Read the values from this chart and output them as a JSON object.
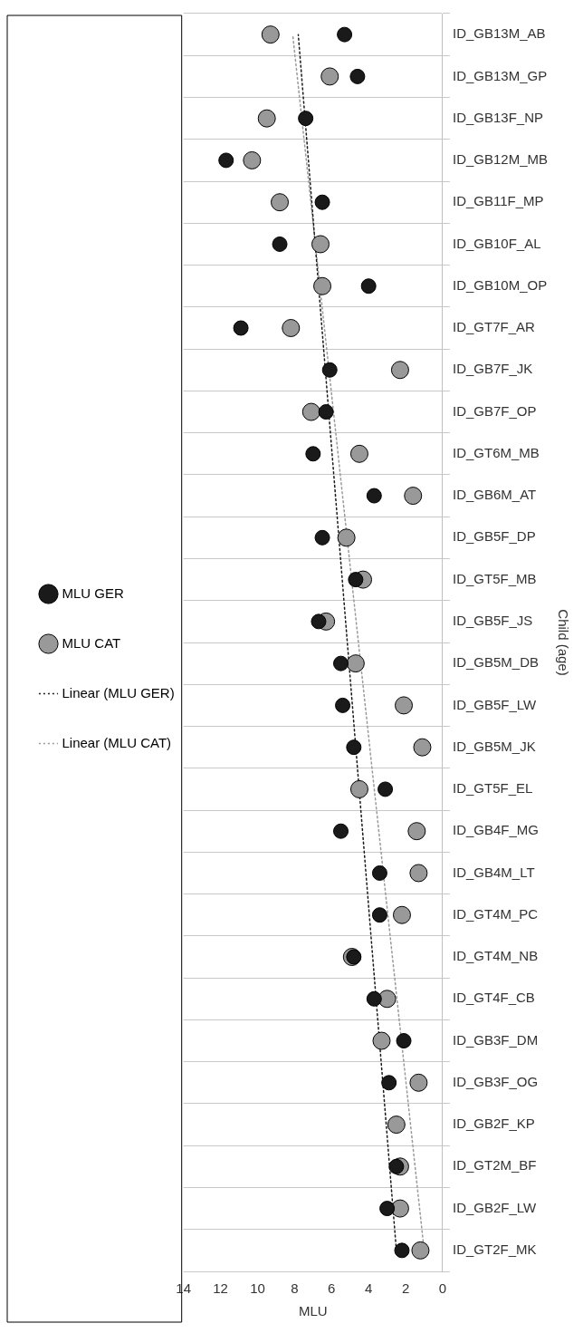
{
  "chart_data": {
    "type": "scatter",
    "orientation": "horizontal",
    "xlabel": "MLU",
    "ylabel": "Child (age)",
    "categories": [
      "ID_GB13M_AB",
      "ID_GB13M_GP",
      "ID_GB13F_NP",
      "ID_GB12M_MB",
      "ID_GB11F_MP",
      "ID_GB10F_AL",
      "ID_GB10M_OP",
      "ID_GT7F_AR",
      "ID_GB7F_JK",
      "ID_GB7F_OP",
      "ID_GT6M_MB",
      "ID_GB6M_AT",
      "ID_GB5F_DP",
      "ID_GT5F_MB",
      "ID_GB5F_JS",
      "ID_GB5M_DB",
      "ID_GB5F_LW",
      "ID_GB5M_JK",
      "ID_GT5F_EL",
      "ID_GB4F_MG",
      "ID_GB4M_LT",
      "ID_GT4M_PC",
      "ID_GT4M_NB",
      "ID_GT4F_CB",
      "ID_GB3F_DM",
      "ID_GB3F_OG",
      "ID_GB2F_KP",
      "ID_GT2M_BF",
      "ID_GB2F_LW",
      "ID_GT2F_MK"
    ],
    "series": [
      {
        "name": "MLU GER",
        "type": "scatter",
        "color": "#1a1a1a",
        "values": [
          5.3,
          4.6,
          7.4,
          11.7,
          6.5,
          8.8,
          4.0,
          10.9,
          6.1,
          6.3,
          7.0,
          3.7,
          6.5,
          4.7,
          6.7,
          5.5,
          5.4,
          4.8,
          3.1,
          5.5,
          3.4,
          3.4,
          4.8,
          3.7,
          2.1,
          2.9,
          null,
          2.5,
          3.0,
          2.2
        ]
      },
      {
        "name": "MLU CAT",
        "type": "scatter",
        "color": "#999999",
        "values": [
          9.3,
          6.1,
          9.5,
          10.3,
          8.8,
          6.6,
          6.5,
          8.2,
          2.3,
          7.1,
          4.5,
          1.6,
          5.2,
          4.3,
          6.3,
          4.7,
          2.1,
          1.1,
          4.5,
          1.4,
          1.3,
          2.2,
          4.9,
          3.0,
          3.3,
          1.3,
          2.5,
          2.3,
          2.3,
          1.2
        ]
      },
      {
        "name": "Linear (MLU GER)",
        "type": "line",
        "color": "#1a1a1a",
        "marker": "none",
        "line_style": "dotted",
        "x": [
          "ID_GT2F_MK",
          "ID_GB13M_AB"
        ],
        "values": [
          2.5,
          7.8
        ]
      },
      {
        "name": "Linear (MLU CAT)",
        "type": "line",
        "color": "#999999",
        "marker": "none",
        "line_style": "dotted",
        "x": [
          "ID_GT2F_MK",
          "ID_GB13M_AB"
        ],
        "values": [
          1.0,
          8.1
        ]
      }
    ],
    "xlim": [
      14,
      0
    ],
    "xticks": [
      14,
      12,
      10,
      8,
      6,
      4,
      2,
      0
    ],
    "grid": "y",
    "legend": "left",
    "marker": "circle"
  }
}
